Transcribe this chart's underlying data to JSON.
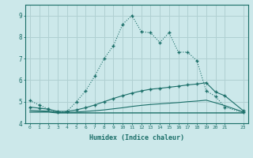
{
  "xlabel": "Humidex (Indice chaleur)",
  "bg_color": "#cce8ea",
  "grid_color": "#b0d0d2",
  "line_color": "#1a6e68",
  "x_data": [
    0,
    1,
    2,
    3,
    4,
    5,
    6,
    7,
    8,
    9,
    10,
    11,
    12,
    13,
    14,
    15,
    16,
    17,
    18,
    19,
    20,
    21,
    23
  ],
  "series1": [
    5.05,
    4.85,
    4.65,
    4.5,
    4.55,
    5.0,
    5.5,
    6.2,
    7.0,
    7.6,
    8.6,
    9.0,
    8.25,
    8.2,
    7.75,
    8.2,
    7.3,
    7.3,
    6.9,
    5.5,
    5.25,
    4.75,
    4.5
  ],
  "series2": [
    4.75,
    4.7,
    4.65,
    4.55,
    4.55,
    4.62,
    4.72,
    4.85,
    5.0,
    5.15,
    5.28,
    5.4,
    5.5,
    5.58,
    5.62,
    5.67,
    5.72,
    5.78,
    5.82,
    5.88,
    5.45,
    5.28,
    4.58
  ],
  "series3": [
    4.6,
    4.58,
    4.56,
    4.5,
    4.5,
    4.52,
    4.55,
    4.58,
    4.62,
    4.67,
    4.72,
    4.78,
    4.83,
    4.87,
    4.9,
    4.93,
    4.96,
    5.0,
    5.03,
    5.07,
    4.95,
    4.82,
    4.52
  ],
  "series4": [
    4.52,
    4.52,
    4.52,
    4.48,
    4.48,
    4.48,
    4.48,
    4.48,
    4.48,
    4.48,
    4.48,
    4.48,
    4.48,
    4.48,
    4.48,
    4.48,
    4.48,
    4.48,
    4.48,
    4.48,
    4.48,
    4.48,
    4.48
  ],
  "ylim": [
    4.0,
    9.5
  ],
  "yticks": [
    4,
    5,
    6,
    7,
    8,
    9
  ],
  "xticks": [
    0,
    1,
    2,
    3,
    4,
    5,
    6,
    7,
    8,
    9,
    10,
    11,
    12,
    13,
    14,
    15,
    16,
    17,
    18,
    19,
    20,
    21,
    23
  ],
  "xlim": [
    -0.5,
    23.5
  ]
}
